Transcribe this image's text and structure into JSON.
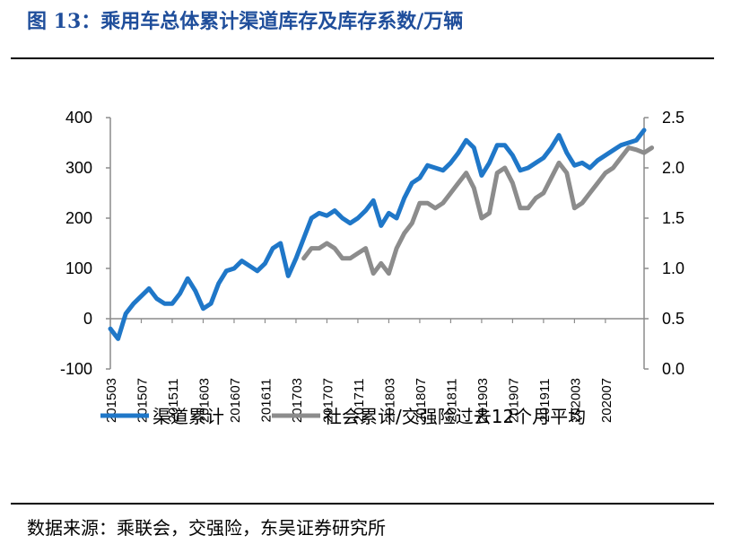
{
  "figure": {
    "title": "图 13：乘用车总体累计渠道库存及库存系数/万辆",
    "source": "数据来源：乘联会，交强险，东吴证券研究所"
  },
  "colors": {
    "series1": "#1f77c8",
    "series2": "#8c8c8c",
    "axis": "#8c8c8c",
    "title": "#1f4e9b"
  },
  "chart_data": {
    "type": "line",
    "title": "乘用车总体累计渠道库存及库存系数/万辆",
    "y_left": {
      "ylim": [
        -100,
        400
      ],
      "ticks": [
        "400",
        "300",
        "200",
        "100",
        "0",
        "-100"
      ]
    },
    "y_right": {
      "ylim": [
        0.0,
        2.5
      ],
      "ticks": [
        "2.5",
        "2.0",
        "1.5",
        "1.0",
        "0.5",
        "0.0"
      ]
    },
    "x_tick_labels": [
      "201503",
      "201507",
      "201511",
      "201603",
      "201607",
      "201611",
      "201703",
      "201707",
      "201711",
      "201803",
      "201807",
      "201811",
      "201903",
      "201907",
      "201911",
      "202003",
      "202007"
    ],
    "x_start": "2015-03",
    "series": [
      {
        "name": "渠道累计",
        "axis": "left",
        "start": "2015-03",
        "values": [
          -20,
          -40,
          10,
          30,
          45,
          60,
          40,
          30,
          30,
          50,
          80,
          55,
          20,
          30,
          70,
          95,
          100,
          115,
          105,
          95,
          110,
          140,
          150,
          85,
          120,
          160,
          200,
          210,
          205,
          215,
          200,
          190,
          200,
          215,
          235,
          185,
          210,
          200,
          240,
          270,
          280,
          305,
          300,
          295,
          310,
          330,
          355,
          340,
          285,
          310,
          345,
          345,
          325,
          295,
          300,
          310,
          320,
          340,
          365,
          330,
          305,
          310,
          300,
          315,
          325,
          335,
          345,
          350,
          355,
          375
        ]
      },
      {
        "name": "社会累计/交强险过去12个月平均",
        "axis": "right",
        "start": "2017-04",
        "values": [
          1.1,
          1.2,
          1.2,
          1.25,
          1.2,
          1.1,
          1.1,
          1.15,
          1.2,
          0.95,
          1.05,
          0.95,
          1.2,
          1.35,
          1.45,
          1.65,
          1.65,
          1.6,
          1.65,
          1.75,
          1.85,
          1.95,
          1.8,
          1.5,
          1.55,
          1.95,
          2.0,
          1.85,
          1.6,
          1.6,
          1.7,
          1.75,
          1.9,
          2.05,
          1.95,
          1.6,
          1.65,
          1.75,
          1.85,
          1.95,
          2.0,
          2.1,
          2.2,
          2.18,
          2.15,
          2.2
        ]
      }
    ],
    "legend_position": "bottom"
  }
}
